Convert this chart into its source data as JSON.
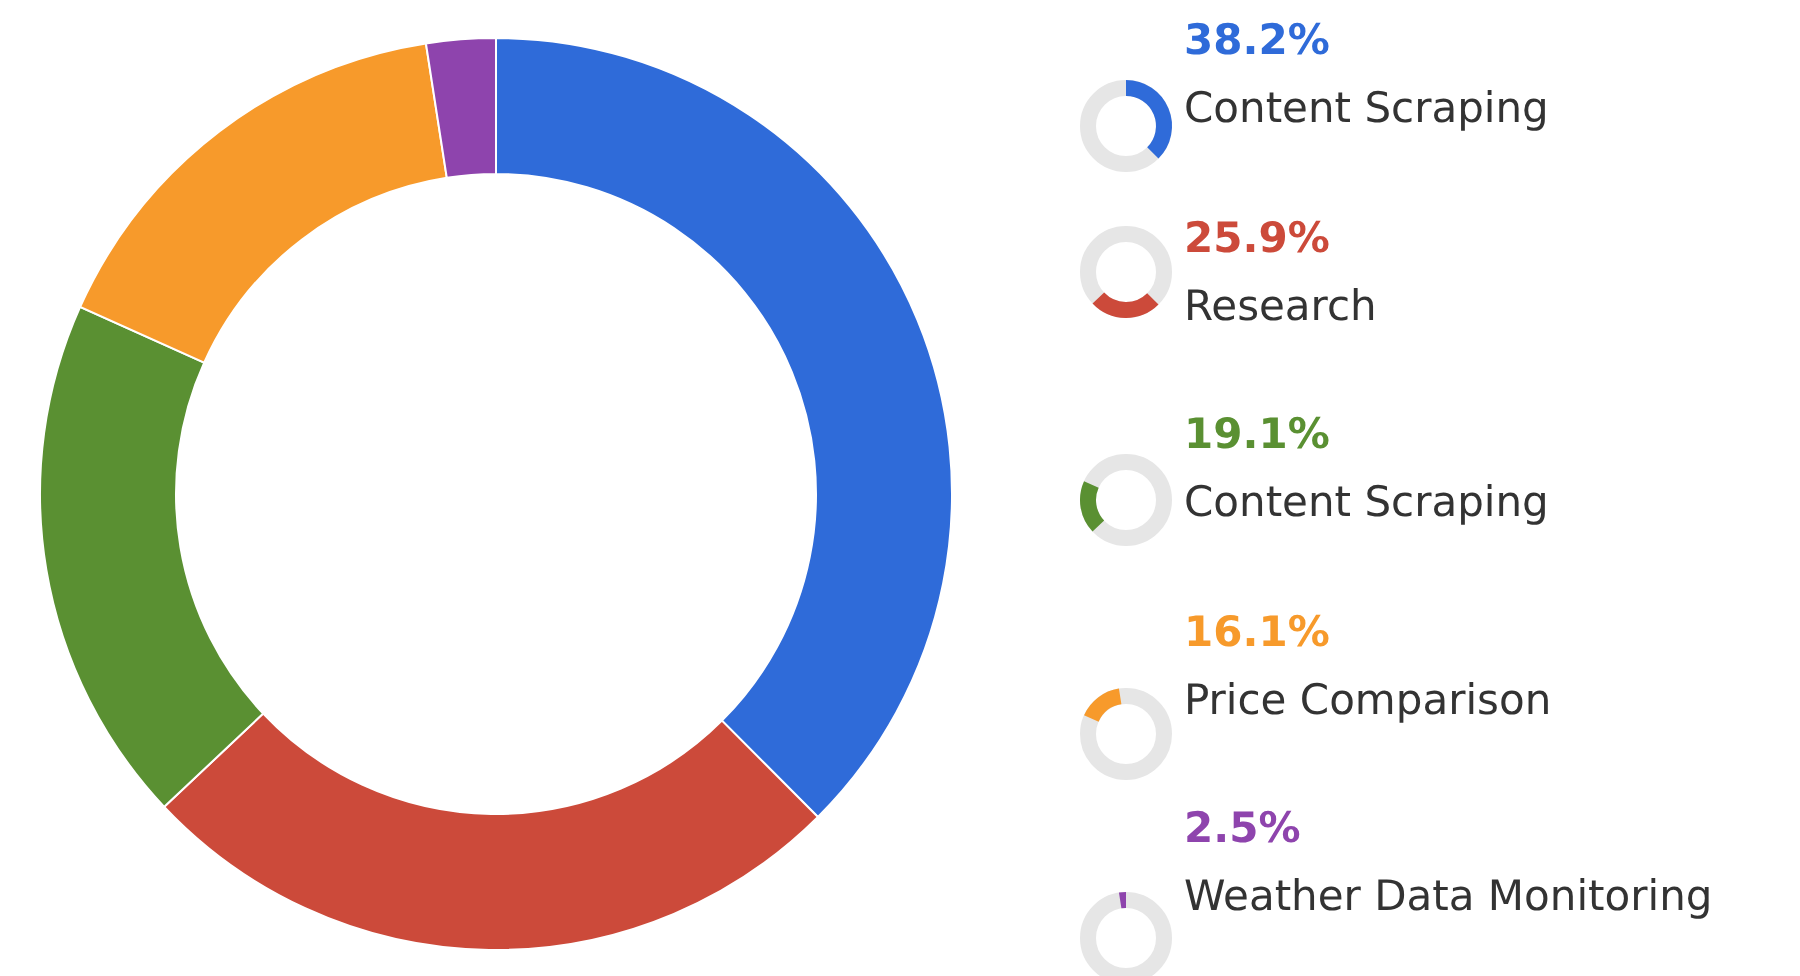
{
  "chart_data": {
    "type": "donut",
    "categories": [
      "Content Scraping",
      "Research",
      "Content Scraping",
      "Price Comparison",
      "Weather Data Monitoring"
    ],
    "values": [
      38.2,
      25.9,
      19.1,
      16.1,
      2.5
    ],
    "colors": [
      "#2f6bd9",
      "#cc4a3a",
      "#5a9032",
      "#f79a2b",
      "#8e44ad"
    ],
    "value_labels": [
      "38.2%",
      "25.9%",
      "19.1%",
      "16.1%",
      "2.5%"
    ],
    "legend": "right"
  }
}
